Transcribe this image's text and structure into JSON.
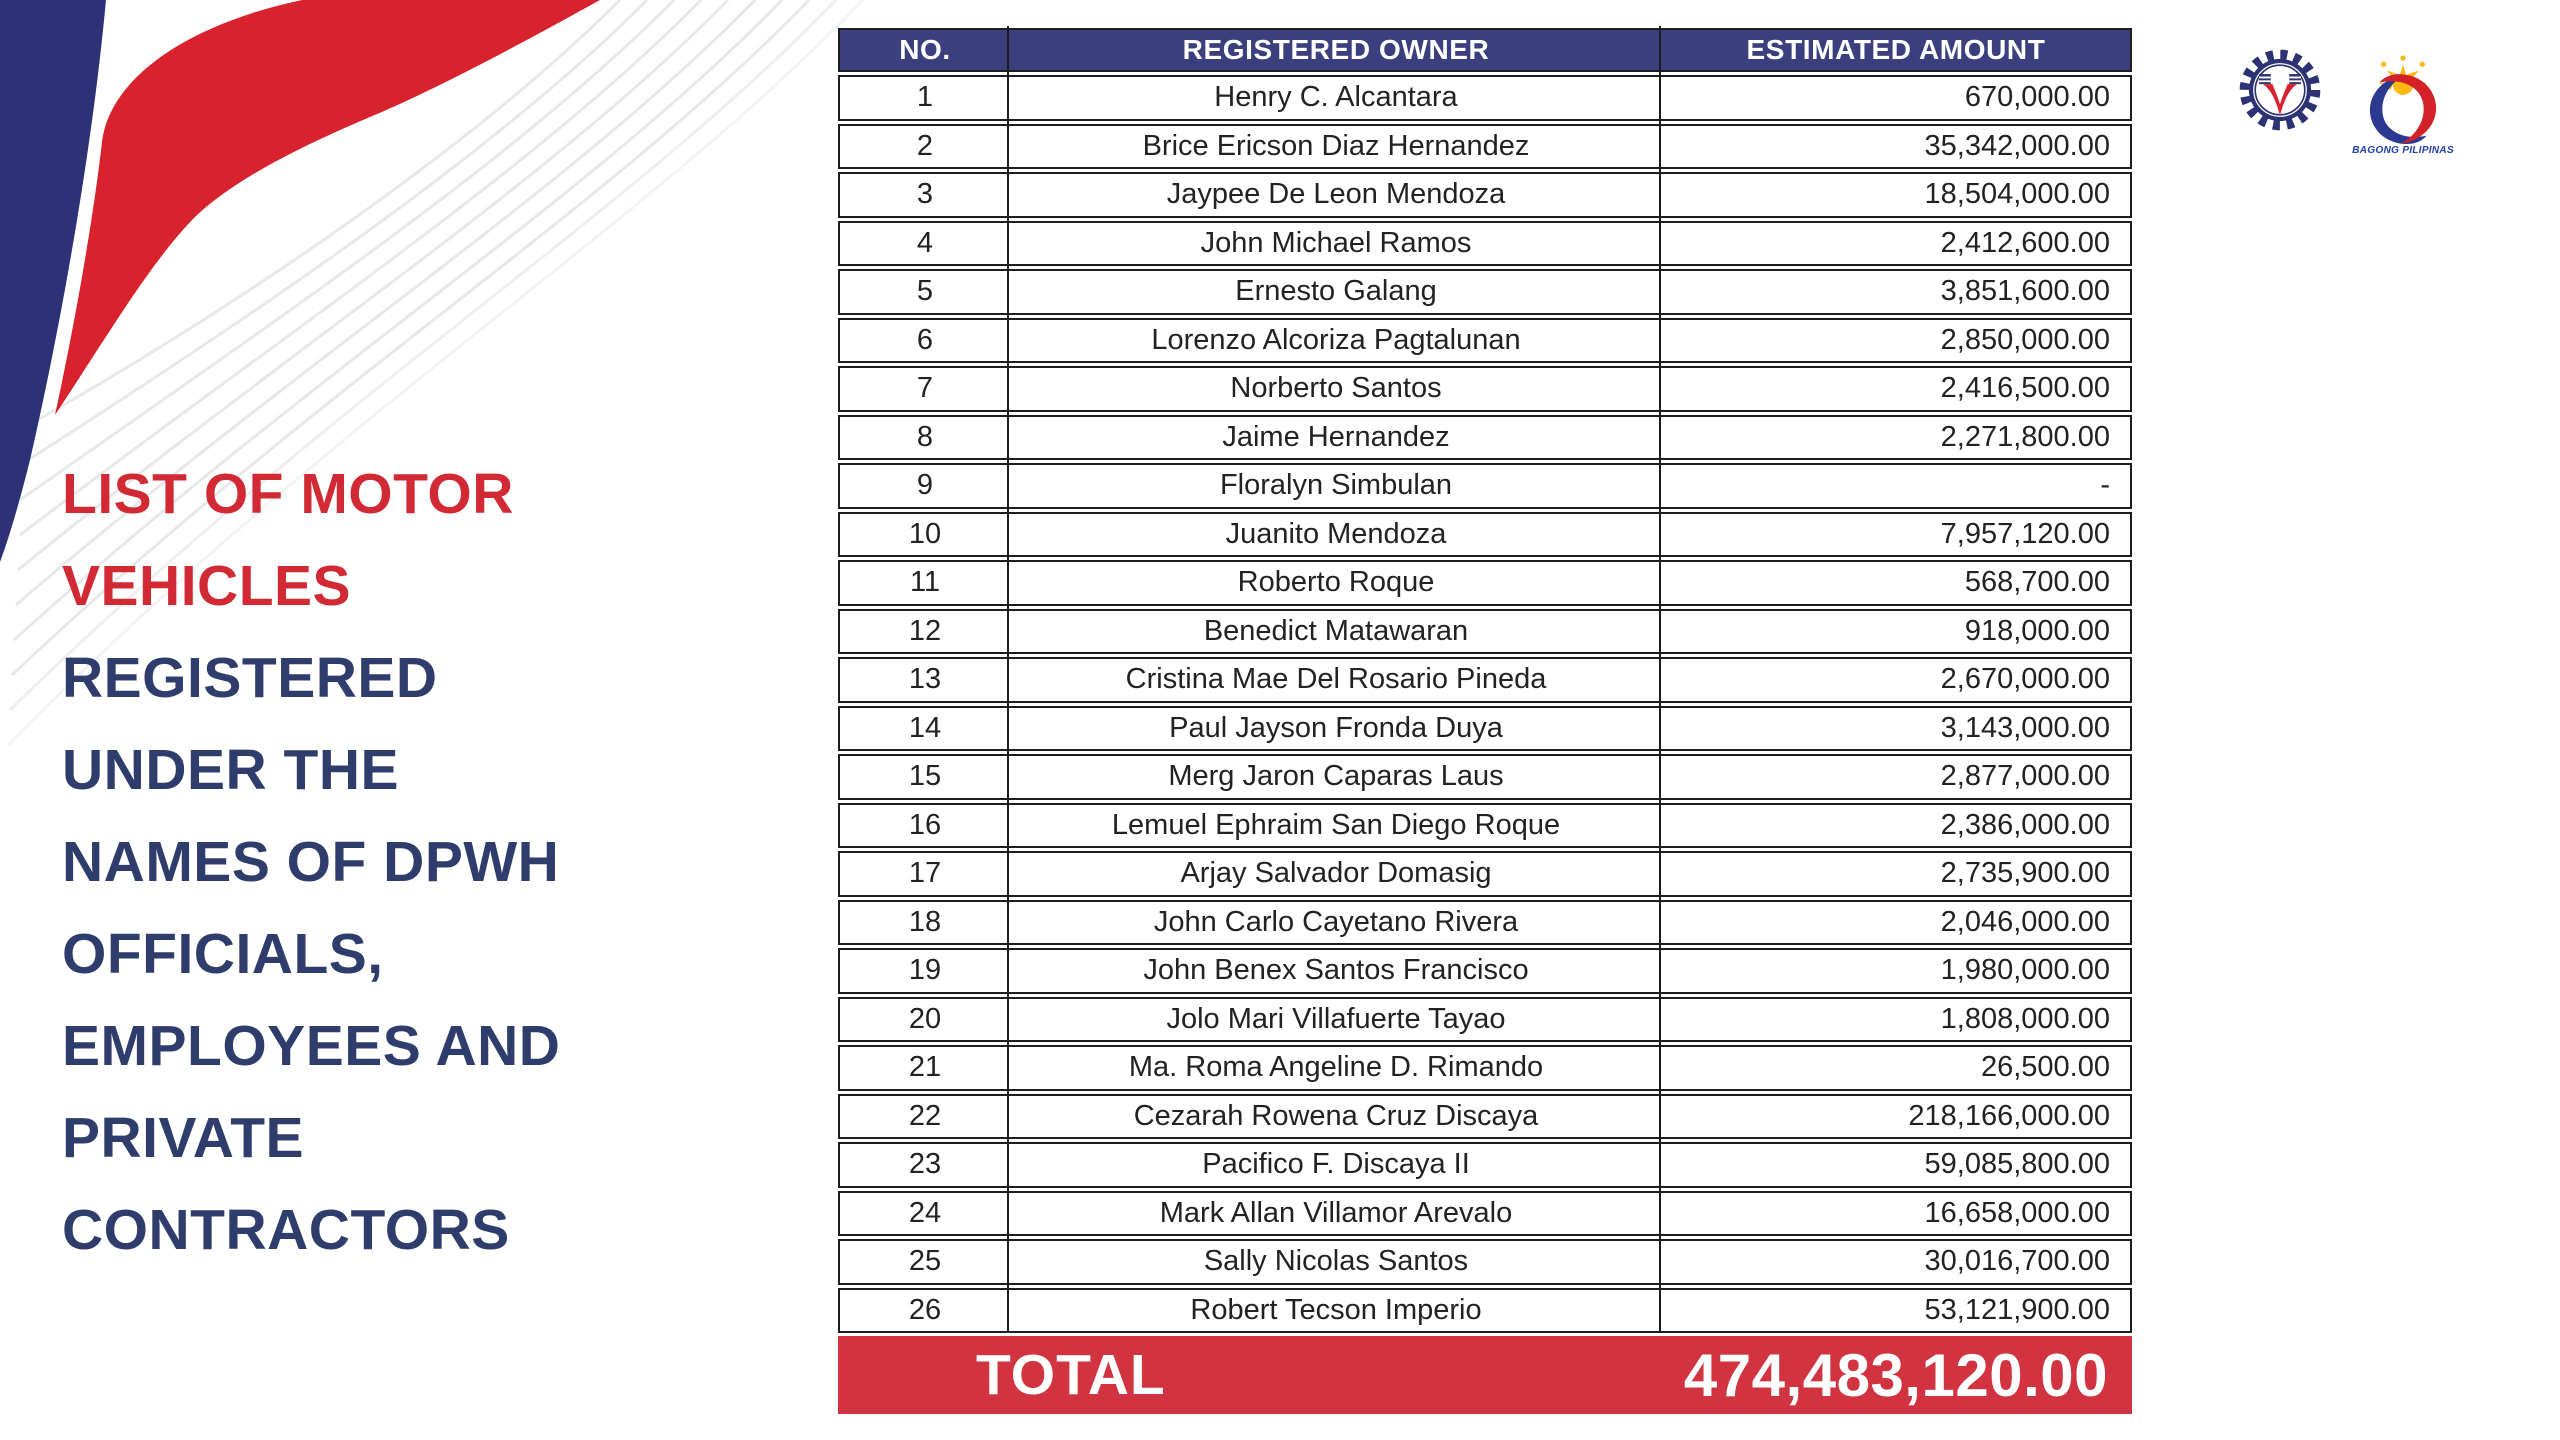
{
  "title": {
    "lines": [
      {
        "text": "LIST OF MOTOR",
        "tone": "red"
      },
      {
        "text": "VEHICLES",
        "tone": "red"
      },
      {
        "text": "REGISTERED",
        "tone": "navy"
      },
      {
        "text": "UNDER THE",
        "tone": "navy"
      },
      {
        "text": "NAMES OF DPWH",
        "tone": "navy"
      },
      {
        "text": "OFFICIALS,",
        "tone": "navy"
      },
      {
        "text": "EMPLOYEES AND",
        "tone": "navy"
      },
      {
        "text": "PRIVATE",
        "tone": "navy"
      },
      {
        "text": "CONTRACTORS",
        "tone": "navy"
      }
    ]
  },
  "table": {
    "columns": [
      "NO.",
      "REGISTERED OWNER",
      "ESTIMATED AMOUNT"
    ],
    "rows": [
      {
        "no": "1",
        "owner": "Henry C. Alcantara",
        "amount": "670,000.00"
      },
      {
        "no": "2",
        "owner": "Brice Ericson Diaz Hernandez",
        "amount": "35,342,000.00"
      },
      {
        "no": "3",
        "owner": "Jaypee De Leon Mendoza",
        "amount": "18,504,000.00"
      },
      {
        "no": "4",
        "owner": "John Michael Ramos",
        "amount": "2,412,600.00"
      },
      {
        "no": "5",
        "owner": "Ernesto Galang",
        "amount": "3,851,600.00"
      },
      {
        "no": "6",
        "owner": "Lorenzo Alcoriza Pagtalunan",
        "amount": "2,850,000.00"
      },
      {
        "no": "7",
        "owner": "Norberto Santos",
        "amount": "2,416,500.00"
      },
      {
        "no": "8",
        "owner": "Jaime Hernandez",
        "amount": "2,271,800.00"
      },
      {
        "no": "9",
        "owner": "Floralyn Simbulan",
        "amount": "-"
      },
      {
        "no": "10",
        "owner": "Juanito Mendoza",
        "amount": "7,957,120.00"
      },
      {
        "no": "11",
        "owner": "Roberto Roque",
        "amount": "568,700.00"
      },
      {
        "no": "12",
        "owner": "Benedict Matawaran",
        "amount": "918,000.00"
      },
      {
        "no": "13",
        "owner": "Cristina Mae Del Rosario Pineda",
        "amount": "2,670,000.00"
      },
      {
        "no": "14",
        "owner": "Paul Jayson Fronda Duya",
        "amount": "3,143,000.00"
      },
      {
        "no": "15",
        "owner": "Merg Jaron Caparas Laus",
        "amount": "2,877,000.00"
      },
      {
        "no": "16",
        "owner": "Lemuel Ephraim San Diego Roque",
        "amount": "2,386,000.00"
      },
      {
        "no": "17",
        "owner": "Arjay Salvador Domasig",
        "amount": "2,735,900.00"
      },
      {
        "no": "18",
        "owner": "John Carlo Cayetano Rivera",
        "amount": "2,046,000.00"
      },
      {
        "no": "19",
        "owner": "John Benex Santos Francisco",
        "amount": "1,980,000.00"
      },
      {
        "no": "20",
        "owner": "Jolo Mari Villafuerte Tayao",
        "amount": "1,808,000.00"
      },
      {
        "no": "21",
        "owner": "Ma. Roma Angeline D. Rimando",
        "amount": "26,500.00"
      },
      {
        "no": "22",
        "owner": "Cezarah Rowena Cruz Discaya",
        "amount": "218,166,000.00"
      },
      {
        "no": "23",
        "owner": "Pacifico F. Discaya II",
        "amount": "59,085,800.00"
      },
      {
        "no": "24",
        "owner": "Mark Allan Villamor Arevalo",
        "amount": "16,658,000.00"
      },
      {
        "no": "25",
        "owner": "Sally Nicolas Santos",
        "amount": "30,016,700.00"
      },
      {
        "no": "26",
        "owner": "Robert Tecson Imperio",
        "amount": "53,121,900.00"
      }
    ],
    "total_label": "TOTAL",
    "total_amount": "474,483,120.00"
  },
  "logos": {
    "dpwh": "dpwh-seal",
    "bagong_pilipinas_caption": "BAGONG PILIPINAS"
  },
  "colors": {
    "header_bg": "#3B3F7E",
    "band_red": "#D13440",
    "title_red": "#D22A35",
    "title_navy": "#2F3D6D",
    "border": "#1D1D1D",
    "swoosh_red": "#D8232E",
    "swoosh_navy": "#2D3175"
  }
}
